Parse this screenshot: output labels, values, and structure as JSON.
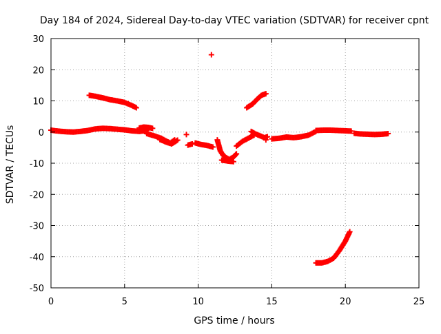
{
  "chart_data": {
    "type": "scatter",
    "title": "Day 184 of 2024, Sidereal Day-to-day VTEC variation (SDTVAR) for receiver cpnt",
    "xlabel": "GPS time / hours",
    "ylabel": "SDTVAR / TECUs",
    "xlim": [
      0,
      25
    ],
    "ylim": [
      -50,
      30
    ],
    "xticks": [
      0,
      5,
      10,
      15,
      20,
      25
    ],
    "yticks": [
      -50,
      -40,
      -30,
      -20,
      -10,
      0,
      10,
      20,
      30
    ],
    "grid": true,
    "marker": "+",
    "marker_color": "#ff0000",
    "segments": [
      {
        "name": "track-1",
        "x": [
          0.0,
          0.5,
          1.0,
          1.5,
          2.0,
          2.5,
          3.0,
          3.5,
          4.0,
          4.5,
          5.0,
          5.5,
          6.0,
          6.5
        ],
        "y": [
          0.6,
          0.3,
          0.1,
          0.0,
          0.2,
          0.5,
          1.0,
          1.2,
          1.1,
          0.9,
          0.7,
          0.4,
          0.2,
          0.5
        ]
      },
      {
        "name": "track-2",
        "x": [
          6.0,
          6.3,
          6.6,
          6.9
        ],
        "y": [
          1.3,
          1.6,
          1.5,
          1.2
        ]
      },
      {
        "name": "track-3",
        "x": [
          6.5,
          7.0,
          7.5,
          7.8,
          8.1,
          8.4
        ],
        "y": [
          -0.5,
          -1.2,
          -2.0,
          -2.8,
          -3.5,
          -2.5
        ]
      },
      {
        "name": "track-4",
        "x": [
          7.4,
          7.8,
          8.2,
          8.6
        ],
        "y": [
          -2.4,
          -3.2,
          -3.8,
          -2.6
        ]
      },
      {
        "name": "track-5",
        "x": [
          2.6,
          3.0,
          3.5,
          4.0,
          4.5,
          5.0,
          5.5,
          5.8
        ],
        "y": [
          11.8,
          11.5,
          11.0,
          10.4,
          10.0,
          9.5,
          8.5,
          7.8
        ]
      },
      {
        "name": "track-6",
        "x": [
          9.2
        ],
        "y": [
          -0.8
        ]
      },
      {
        "name": "track-7",
        "x": [
          9.3,
          9.6
        ],
        "y": [
          -4.2,
          -3.8
        ]
      },
      {
        "name": "track-8",
        "x": [
          9.8,
          10.2,
          10.6,
          11.0
        ],
        "y": [
          -3.5,
          -4.0,
          -4.3,
          -4.8
        ]
      },
      {
        "name": "track-9",
        "x": [
          10.9
        ],
        "y": [
          24.8
        ]
      },
      {
        "name": "track-10",
        "x": [
          11.3,
          11.5,
          11.7,
          11.9,
          12.1,
          12.4,
          12.6
        ],
        "y": [
          -2.5,
          -6.0,
          -7.5,
          -8.2,
          -8.8,
          -8.0,
          -7.0
        ]
      },
      {
        "name": "track-11",
        "x": [
          11.6,
          12.0,
          12.4
        ],
        "y": [
          -9.0,
          -9.3,
          -9.5
        ]
      },
      {
        "name": "track-12",
        "x": [
          12.6,
          13.0,
          13.4,
          13.8
        ],
        "y": [
          -4.5,
          -3.0,
          -2.0,
          -1.0
        ]
      },
      {
        "name": "track-13",
        "x": [
          13.3,
          13.7,
          14.0,
          14.3,
          14.6
        ],
        "y": [
          7.8,
          9.0,
          10.5,
          11.8,
          12.3
        ]
      },
      {
        "name": "track-14",
        "x": [
          13.6,
          13.9,
          14.2,
          14.5,
          14.7
        ],
        "y": [
          0.2,
          -0.6,
          -1.2,
          -1.8,
          -1.5
        ]
      },
      {
        "name": "track-15",
        "x": [
          14.6
        ],
        "y": [
          -2.5
        ]
      },
      {
        "name": "track-16",
        "x": [
          15.0,
          15.5,
          16.0,
          16.5,
          17.0,
          17.5,
          18.0
        ],
        "y": [
          -2.2,
          -2.0,
          -1.6,
          -1.8,
          -1.5,
          -1.0,
          0.2
        ]
      },
      {
        "name": "track-17",
        "x": [
          18.0,
          18.5,
          19.0,
          19.5,
          20.0,
          20.4
        ],
        "y": [
          0.5,
          0.6,
          0.6,
          0.5,
          0.4,
          0.3
        ]
      },
      {
        "name": "track-18",
        "x": [
          18.0,
          18.4,
          18.8,
          19.2,
          19.6,
          20.0,
          20.3
        ],
        "y": [
          -42.0,
          -42.0,
          -41.5,
          -40.5,
          -38.0,
          -35.0,
          -32.0
        ]
      },
      {
        "name": "track-19",
        "x": [
          20.6,
          21.0,
          21.5,
          22.0,
          22.5,
          22.9
        ],
        "y": [
          -0.4,
          -0.6,
          -0.7,
          -0.8,
          -0.7,
          -0.5
        ]
      }
    ]
  }
}
